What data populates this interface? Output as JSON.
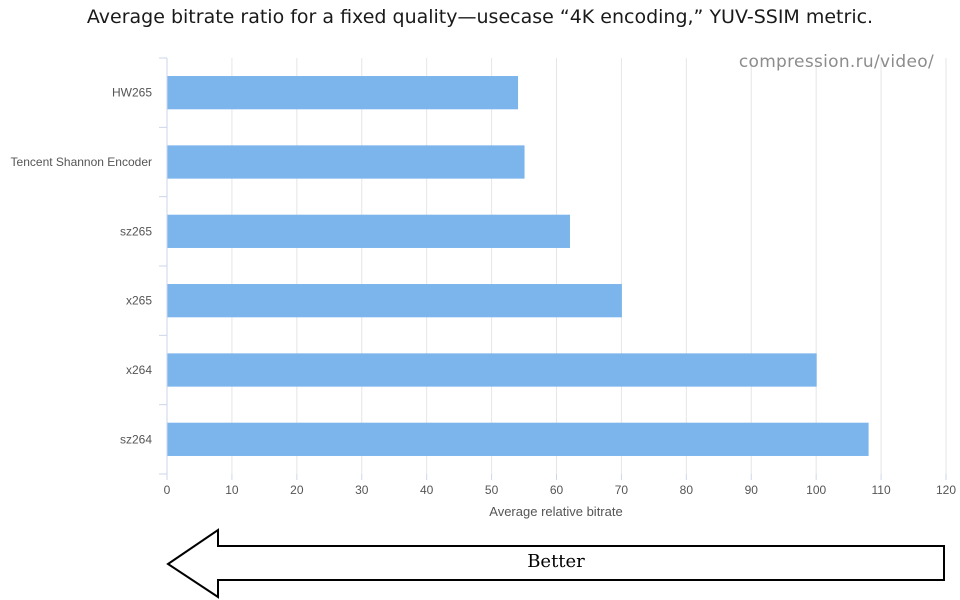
{
  "chart_data": {
    "type": "bar",
    "orientation": "horizontal",
    "title": "Average bitrate ratio for a fixed quality—usecase “4K encoding,” YUV-SSIM metric.",
    "categories": [
      "HW265",
      "Tencent Shannon Encoder",
      "sz265",
      "x265",
      "x264",
      "sz264"
    ],
    "values": [
      54,
      55,
      62,
      70,
      100,
      108
    ],
    "xlabel": "Average relative bitrate",
    "ylabel": "",
    "xlim": [
      0,
      120
    ],
    "xticks": [
      0,
      10,
      20,
      30,
      40,
      50,
      60,
      70,
      80,
      90,
      100,
      110,
      120
    ],
    "grid": true,
    "bar_color": "#7cb5ec"
  },
  "watermark": "compression.ru/video/",
  "annotation": {
    "arrow_direction": "left",
    "label": "Better"
  }
}
